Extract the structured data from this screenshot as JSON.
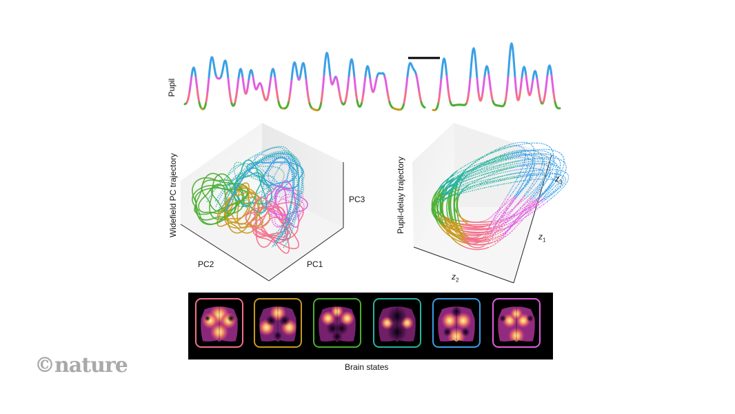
{
  "labels": {
    "pupil": "Pupil",
    "widefield": "Widefield PC trajectory",
    "pc1": "PC1",
    "pc2": "PC2",
    "pc3": "PC3",
    "pupil_delay": "Pupil-delay trajectory",
    "z_letter": "z",
    "z1_sub": "1",
    "z2_sub": "2",
    "z3_sub": "3",
    "brain_states": "Brain states"
  },
  "watermark": "©nature",
  "state_colors": {
    "pink": "#f4708a",
    "gold": "#c89a22",
    "green": "#4caf32",
    "teal": "#2bb3a0",
    "blue": "#3aa0e6",
    "magenta": "#e25ee0"
  },
  "brain_states": [
    {
      "state": "pink",
      "border": "#f4708a"
    },
    {
      "state": "gold",
      "border": "#c89a22"
    },
    {
      "state": "green",
      "border": "#4caf32"
    },
    {
      "state": "teal",
      "border": "#2bb3a0"
    },
    {
      "state": "blue",
      "border": "#3aa0e6"
    },
    {
      "state": "magenta",
      "border": "#e25ee0"
    }
  ]
}
